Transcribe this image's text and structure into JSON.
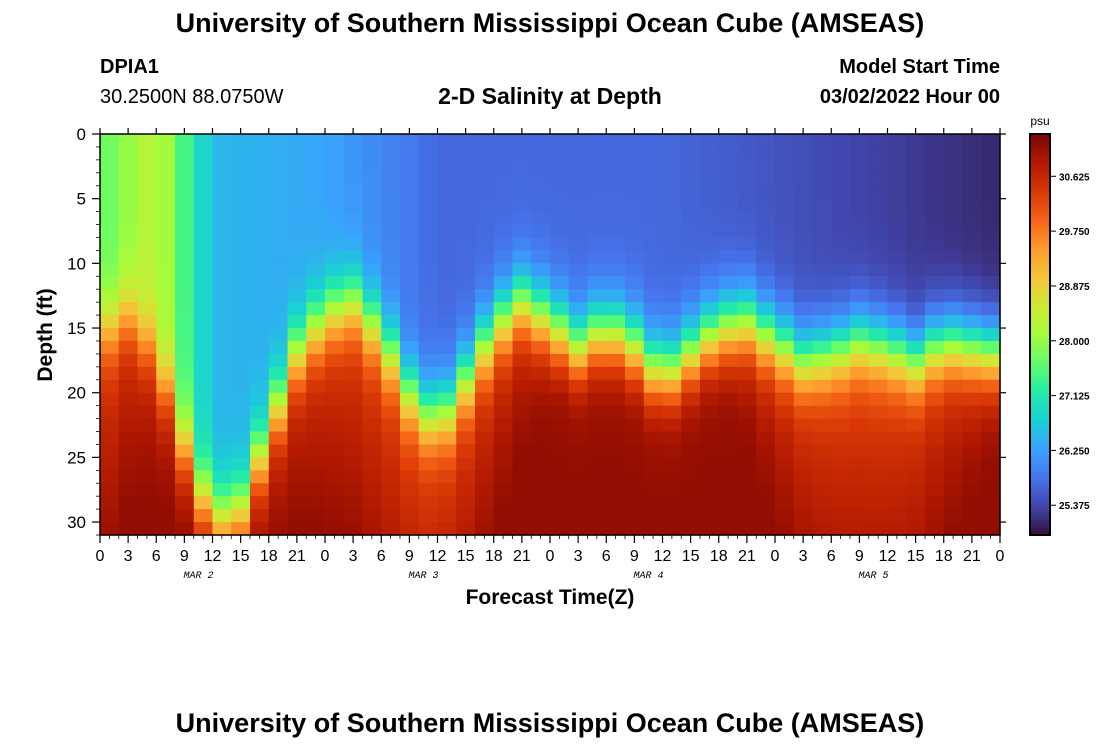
{
  "header": {
    "title": "University of Southern Mississippi Ocean Cube (AMSEAS)",
    "station_id": "DPIA1",
    "coords": "30.2500N  88.0750W",
    "subtitle": "2-D Salinity at Depth",
    "model_start_label": "Model Start Time",
    "model_start_value": "03/02/2022 Hour 00"
  },
  "footer": {
    "title": "University of Southern Mississippi Ocean Cube (AMSEAS)"
  },
  "chart_data": {
    "type": "heatmap",
    "title": "2-D Salinity at Depth",
    "xlabel": "Forecast Time(Z)",
    "ylabel": "Depth (ft)",
    "xlim": [
      0,
      96
    ],
    "ylim": [
      0,
      31
    ],
    "x_ticks": [
      "0",
      "3",
      "6",
      "9",
      "12",
      "15",
      "18",
      "21",
      "0",
      "3",
      "6",
      "9",
      "12",
      "15",
      "18",
      "21",
      "0",
      "3",
      "6",
      "9",
      "12",
      "15",
      "18",
      "21",
      "0",
      "3",
      "6",
      "9",
      "12",
      "15",
      "18",
      "21",
      "0"
    ],
    "day_labels": [
      "MAR 2",
      "MAR 3",
      "MAR 4",
      "MAR 5"
    ],
    "y_ticks": [
      "0",
      "5",
      "10",
      "15",
      "20",
      "25",
      "30"
    ],
    "colorbar": {
      "unit": "psu",
      "ticks": [
        "30.625",
        "29.750",
        "28.875",
        "28.000",
        "27.125",
        "26.250",
        "25.375"
      ],
      "range": [
        24.9,
        31.3
      ],
      "colors": [
        "#30123b",
        "#4145ab",
        "#4675ed",
        "#39a2fc",
        "#1bcfd4",
        "#24eca6",
        "#61fc6c",
        "#a4fc3b",
        "#d1e834",
        "#f3c63a",
        "#fe9b2d",
        "#f36315",
        "#d93806",
        "#b11901",
        "#7a0402"
      ]
    },
    "depth_step": 1,
    "time_step": 2,
    "salinity_at_surface_hourly": [
      {
        "hour": 0,
        "value": 27.6
      },
      {
        "hour": 6,
        "value": 28.4
      },
      {
        "hour": 12,
        "value": 26.5
      },
      {
        "hour": 24,
        "value": 26.3
      },
      {
        "hour": 36,
        "value": 25.7
      },
      {
        "hour": 60,
        "value": 25.7
      },
      {
        "hour": 96,
        "value": 25.1
      }
    ],
    "front_depth_ft": [
      {
        "hour": 0,
        "depth": 15.5
      },
      {
        "hour": 3,
        "depth": 14
      },
      {
        "hour": 6,
        "depth": 17
      },
      {
        "hour": 9,
        "depth": 24
      },
      {
        "hour": 12,
        "depth": 30
      },
      {
        "hour": 15,
        "depth": 29
      },
      {
        "hour": 18,
        "depth": 23
      },
      {
        "hour": 21,
        "depth": 17
      },
      {
        "hour": 24,
        "depth": 14
      },
      {
        "hour": 27,
        "depth": 13
      },
      {
        "hour": 30,
        "depth": 15.5
      },
      {
        "hour": 33,
        "depth": 20
      },
      {
        "hour": 36,
        "depth": 22.5
      },
      {
        "hour": 39,
        "depth": 19
      },
      {
        "hour": 42,
        "depth": 15
      },
      {
        "hour": 45,
        "depth": 13
      },
      {
        "hour": 48,
        "depth": 14.5
      },
      {
        "hour": 51,
        "depth": 16.5
      },
      {
        "hour": 54,
        "depth": 15
      },
      {
        "hour": 57,
        "depth": 16.5
      },
      {
        "hour": 60,
        "depth": 19
      },
      {
        "hour": 63,
        "depth": 17
      },
      {
        "hour": 66,
        "depth": 15
      },
      {
        "hour": 69,
        "depth": 14.5
      },
      {
        "hour": 72,
        "depth": 16
      },
      {
        "hour": 75,
        "depth": 17.5
      },
      {
        "hour": 78,
        "depth": 17
      },
      {
        "hour": 81,
        "depth": 16
      },
      {
        "hour": 84,
        "depth": 16.5
      },
      {
        "hour": 87,
        "depth": 17.5
      },
      {
        "hour": 90,
        "depth": 16
      },
      {
        "hour": 93,
        "depth": 16.5
      },
      {
        "hour": 96,
        "depth": 17
      }
    ],
    "deep_salinity_max": 31.1,
    "deep_salinity_min": 29.0
  }
}
